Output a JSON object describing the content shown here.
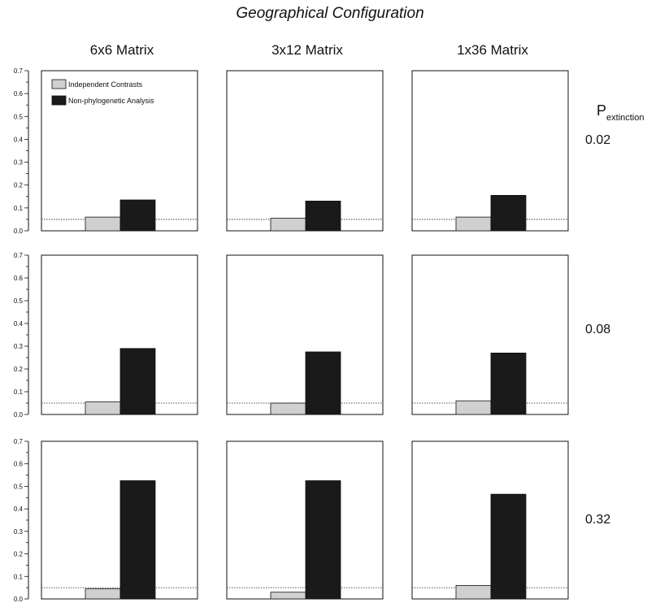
{
  "chart_data": {
    "type": "bar",
    "title": "Geographical Configuration",
    "column_titles": [
      "6x6 Matrix",
      "3x12 Matrix",
      "1x36 Matrix"
    ],
    "row_header": {
      "main": "P",
      "sub": "extinction"
    },
    "row_labels": [
      "0.02",
      "0.08",
      "0.32"
    ],
    "series": [
      {
        "name": "Independent Contrasts",
        "color": "#d0d0d0"
      },
      {
        "name": "Non-phylogenetic Analysis",
        "color": "#1a1a1a"
      }
    ],
    "ylim": [
      0,
      0.7
    ],
    "yticks": [
      "0.0",
      "0.1",
      "0.2",
      "0.3",
      "0.4",
      "0.5",
      "0.6",
      "0.7"
    ],
    "reference_line": 0.05,
    "legend_position": "top-left of first panel",
    "panels": [
      [
        {
          "values": [
            0.06,
            0.135
          ]
        },
        {
          "values": [
            0.055,
            0.13
          ]
        },
        {
          "values": [
            0.06,
            0.155
          ]
        }
      ],
      [
        {
          "values": [
            0.055,
            0.29
          ]
        },
        {
          "values": [
            0.05,
            0.275
          ]
        },
        {
          "values": [
            0.06,
            0.27
          ]
        }
      ],
      [
        {
          "values": [
            0.045,
            0.525
          ]
        },
        {
          "values": [
            0.03,
            0.525
          ]
        },
        {
          "values": [
            0.06,
            0.465
          ]
        }
      ]
    ]
  }
}
